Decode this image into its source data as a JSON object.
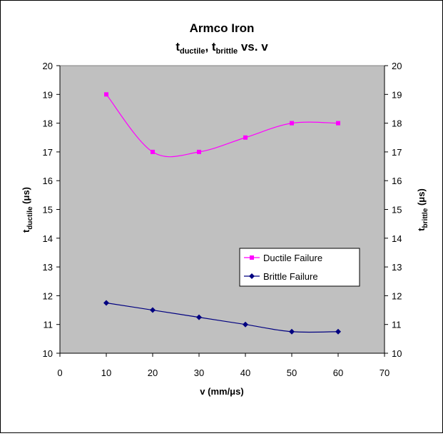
{
  "chart_data": {
    "type": "line",
    "title": "Armco Iron",
    "subtitle": {
      "t1": "t",
      "t1_sub": "ductile",
      "sep": ", ",
      "t2": "t",
      "t2_sub": "brittle",
      "tail": " vs. v"
    },
    "xlabel": "v (mm/μs)",
    "ylabel_left": {
      "main": "t",
      "sub": "ductile",
      "rest": " (μs)"
    },
    "ylabel_right": {
      "main": "t",
      "sub": "brittle",
      "rest": " (μs)"
    },
    "xlim": [
      0,
      70
    ],
    "ylim": [
      10,
      20
    ],
    "x_ticks": [
      "0",
      "10",
      "20",
      "30",
      "40",
      "50",
      "60",
      "70"
    ],
    "y_ticks": [
      "10",
      "11",
      "12",
      "13",
      "14",
      "15",
      "16",
      "17",
      "18",
      "19",
      "20"
    ],
    "x": [
      10,
      20,
      30,
      40,
      50,
      60
    ],
    "series": [
      {
        "name": "Ductile Failure",
        "values": [
          19,
          17,
          17,
          17.5,
          18,
          18
        ],
        "color": "#ff00ff",
        "marker": "square"
      },
      {
        "name": "Brittle Failure",
        "values": [
          11.75,
          11.5,
          11.25,
          11,
          10.75,
          10.75
        ],
        "color": "#000080",
        "marker": "diamond"
      }
    ],
    "grid": false,
    "plot_background": "#c0c0c0",
    "legend_position": "right"
  }
}
